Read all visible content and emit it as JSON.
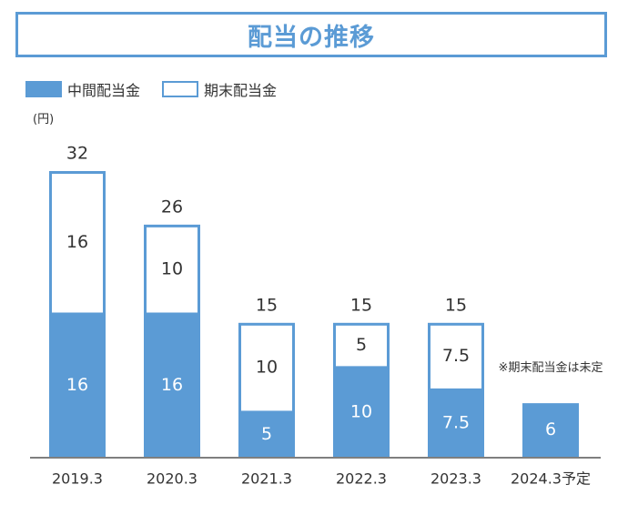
{
  "title": "配当の推移",
  "unit": "(円)",
  "note": "※期末配当金は未定",
  "colors": {
    "interim": "#5b9bd5",
    "border": "#5b9bd5",
    "axis": "#7f7f7f",
    "text": "#333333"
  },
  "chart_data": {
    "type": "bar",
    "stacked": true,
    "categories": [
      "2019.3",
      "2020.3",
      "2021.3",
      "2022.3",
      "2023.3",
      "2024.3予定"
    ],
    "series": [
      {
        "name": "中間配当金",
        "values": [
          16,
          16,
          5,
          10,
          7.5,
          6
        ],
        "labels": [
          "16",
          "16",
          "5",
          "10",
          "7.5",
          "6"
        ]
      },
      {
        "name": "期末配当金",
        "values": [
          16,
          10,
          10,
          5,
          7.5,
          null
        ],
        "labels": [
          "16",
          "10",
          "10",
          "5",
          "7.5",
          ""
        ]
      }
    ],
    "totals": [
      "32",
      "26",
      "15",
      "15",
      "15",
      ""
    ],
    "ylabel": "(円)",
    "ylim": [
      0,
      32
    ],
    "legend": "top-left",
    "grid": false
  }
}
